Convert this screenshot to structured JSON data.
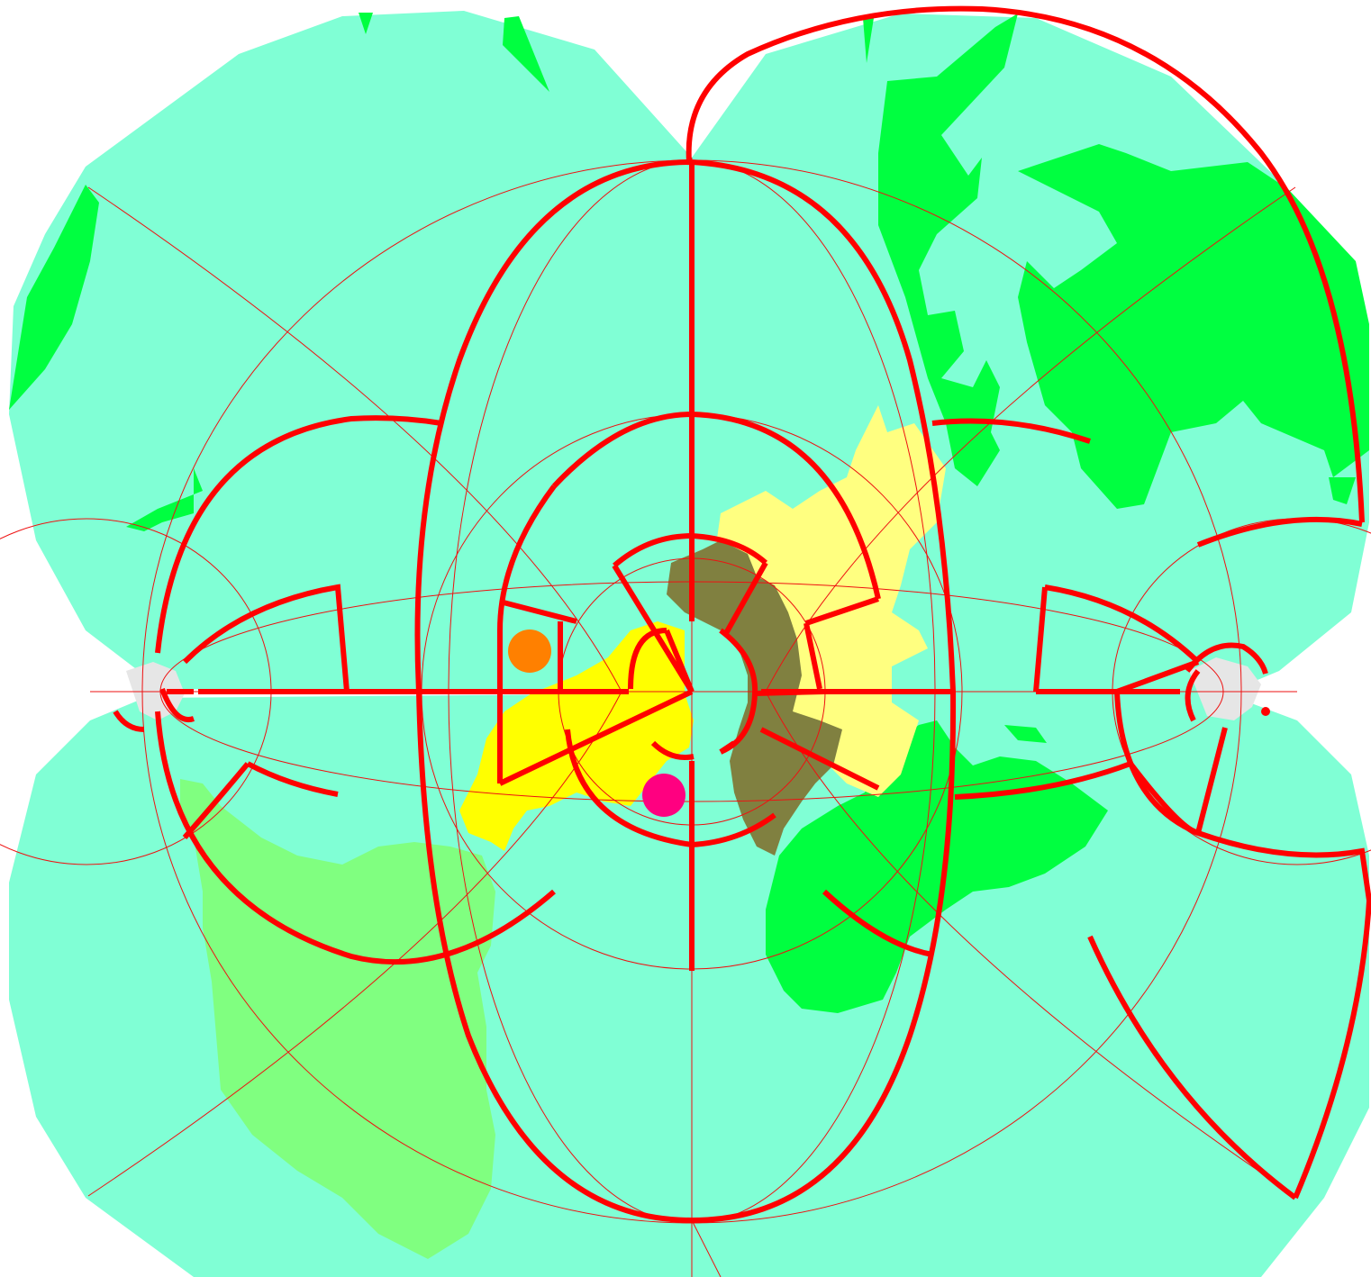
{
  "map": {
    "projection_style": "non-Euclidean quad-lobed world map with central radial grid",
    "colors": {
      "ocean": "#80ffd5",
      "land_green": "#00ff40",
      "land_light_green": "#80ff80",
      "land_yellow": "#ffff00",
      "land_pale_yellow": "#ffff80",
      "land_olive": "#808040",
      "boundary": "#ff0000",
      "graticule": "#ee1111",
      "gap": "#e6e6e6"
    },
    "markers": [
      {
        "name": "orange-marker",
        "color": "#ff8000"
      },
      {
        "name": "magenta-marker",
        "color": "#ff0080"
      }
    ]
  }
}
